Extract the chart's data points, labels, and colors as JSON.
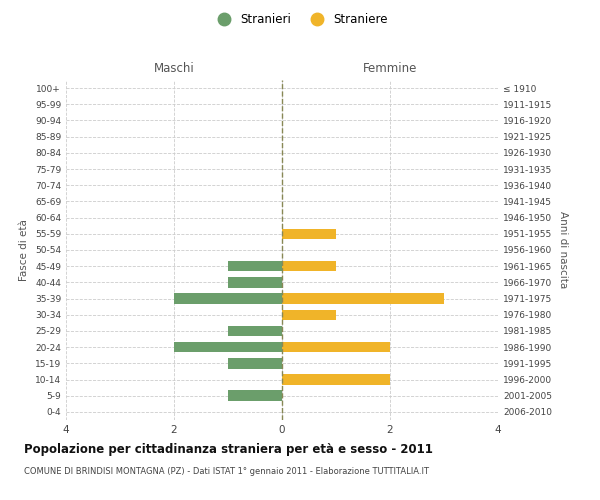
{
  "age_groups": [
    "0-4",
    "5-9",
    "10-14",
    "15-19",
    "20-24",
    "25-29",
    "30-34",
    "35-39",
    "40-44",
    "45-49",
    "50-54",
    "55-59",
    "60-64",
    "65-69",
    "70-74",
    "75-79",
    "80-84",
    "85-89",
    "90-94",
    "95-99",
    "100+"
  ],
  "birth_years": [
    "2006-2010",
    "2001-2005",
    "1996-2000",
    "1991-1995",
    "1986-1990",
    "1981-1985",
    "1976-1980",
    "1971-1975",
    "1966-1970",
    "1961-1965",
    "1956-1960",
    "1951-1955",
    "1946-1950",
    "1941-1945",
    "1936-1940",
    "1931-1935",
    "1926-1930",
    "1921-1925",
    "1916-1920",
    "1911-1915",
    "≤ 1910"
  ],
  "maschi": [
    0,
    1,
    0,
    1,
    2,
    1,
    0,
    2,
    1,
    1,
    0,
    0,
    0,
    0,
    0,
    0,
    0,
    0,
    0,
    0,
    0
  ],
  "femmine": [
    0,
    0,
    2,
    0,
    2,
    0,
    1,
    3,
    0,
    1,
    0,
    1,
    0,
    0,
    0,
    0,
    0,
    0,
    0,
    0,
    0
  ],
  "maschi_color": "#6b9e6b",
  "femmine_color": "#f0b429",
  "title": "Popolazione per cittadinanza straniera per età e sesso - 2011",
  "subtitle": "COMUNE DI BRINDISI MONTAGNA (PZ) - Dati ISTAT 1° gennaio 2011 - Elaborazione TUTTITALIA.IT",
  "xlabel_left": "Maschi",
  "xlabel_right": "Femmine",
  "ylabel_left": "Fasce di età",
  "ylabel_right": "Anni di nascita",
  "legend_maschi": "Stranieri",
  "legend_femmine": "Straniere",
  "xlim": 4,
  "background_color": "#ffffff",
  "grid_color": "#cccccc",
  "axis_label_color": "#888888"
}
